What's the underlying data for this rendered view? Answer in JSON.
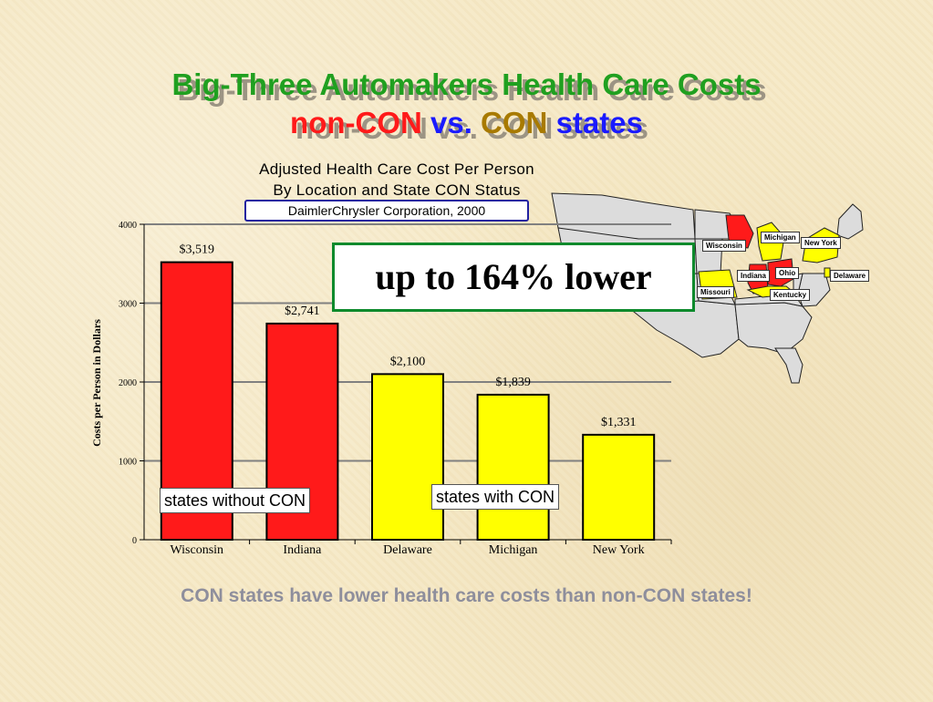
{
  "slide": {
    "title_line1": "Big-Three Automakers Health Care Costs",
    "title_line2": {
      "part1": "non-CON",
      "part2": "vs.",
      "part3": "CON",
      "part4": "states"
    },
    "callout": "up to 164% lower",
    "label_without": "states without CON",
    "label_with": "states with CON",
    "bottom_text": "CON states have lower health care costs than non-CON states!",
    "colors": {
      "title_green": "#20a020",
      "red": "#ff1a1a",
      "blue": "#1a1aff",
      "brown": "#a87a00",
      "callout_border": "#0c8a2c"
    }
  },
  "map": {
    "labels": {
      "wisconsin": "Wisconsin",
      "michigan": "Michigan",
      "new_york": "New York",
      "indiana": "Indiana",
      "ohio": "Ohio",
      "delaware": "Delaware",
      "missouri": "Missouri",
      "kentucky": "Kentucky"
    },
    "colors": {
      "non_con": "#ff1a1a",
      "con": "#ffff00",
      "other": "#dcdcdc"
    }
  },
  "chart_data": {
    "type": "bar",
    "title_line1": "Adjusted Health Care Cost Per Person",
    "title_line2": "By Location and State CON Status",
    "subtitle": "DaimlerChrysler Corporation, 2000",
    "ylabel": "Costs per Person in Dollars",
    "xlabel": "",
    "categories": [
      "Wisconsin",
      "Indiana",
      "Delaware",
      "Michigan",
      "New York"
    ],
    "values": [
      3519,
      2741,
      2100,
      1839,
      1331
    ],
    "value_labels": [
      "$3,519",
      "$2,741",
      "$2,100",
      "$1,839",
      "$1,331"
    ],
    "bar_colors": [
      "#ff1a1a",
      "#ff1a1a",
      "#ffff00",
      "#ffff00",
      "#ffff00"
    ],
    "ylim": [
      0,
      4000
    ],
    "yticks": [
      0,
      1000,
      2000,
      3000,
      4000
    ],
    "ytick_labels": [
      "0",
      "1000",
      "2000",
      "3000",
      "4000"
    ],
    "grid": true,
    "legend": "none"
  }
}
